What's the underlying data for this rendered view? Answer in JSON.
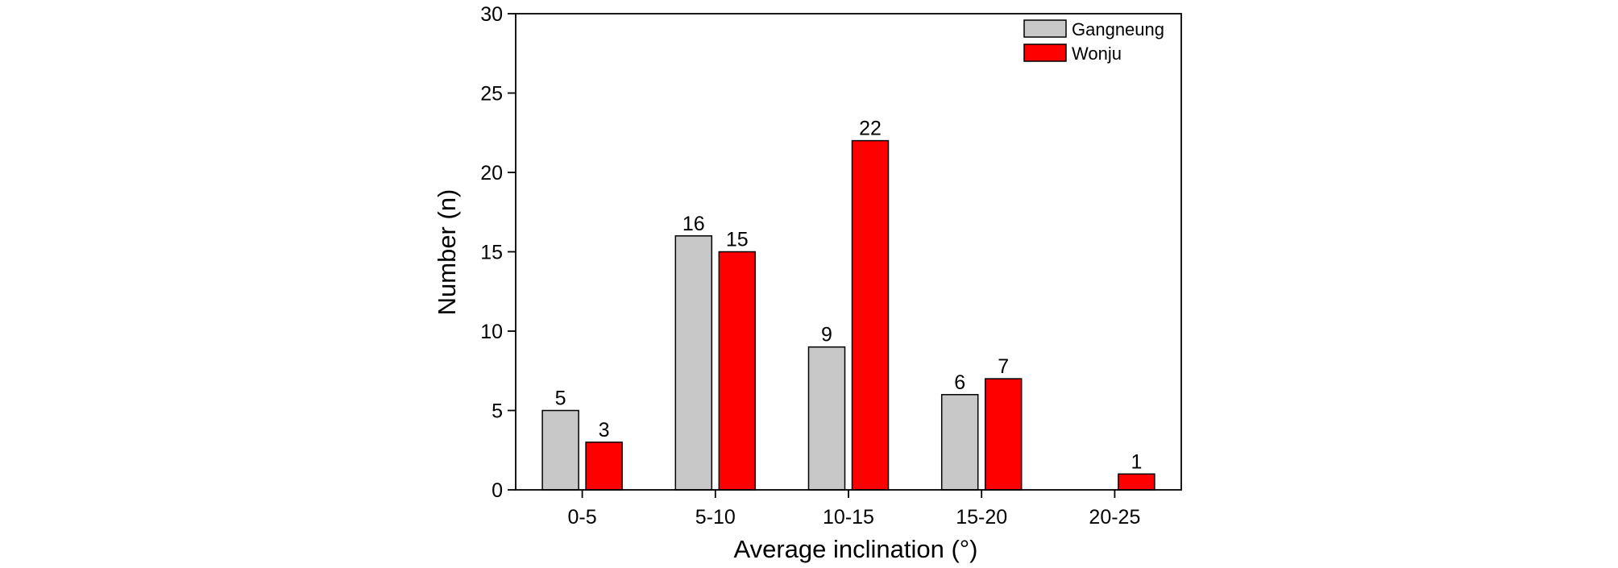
{
  "chart_data": {
    "type": "bar",
    "title": "",
    "xlabel": "Average inclination (°)",
    "ylabel": "Number (n)",
    "categories": [
      "0-5",
      "5-10",
      "10-15",
      "15-20",
      "20-25"
    ],
    "series": [
      {
        "name": "Gangneung",
        "color": "#c8c8c8",
        "values": [
          5,
          16,
          9,
          6,
          null
        ]
      },
      {
        "name": "Wonju",
        "color": "#ff0000",
        "values": [
          3,
          15,
          22,
          7,
          1
        ]
      }
    ],
    "ylim": [
      0,
      30
    ],
    "yticks": [
      0,
      5,
      10,
      15,
      20,
      25,
      30
    ],
    "grid": false,
    "legend_position": "top-right",
    "data_labels": true
  }
}
